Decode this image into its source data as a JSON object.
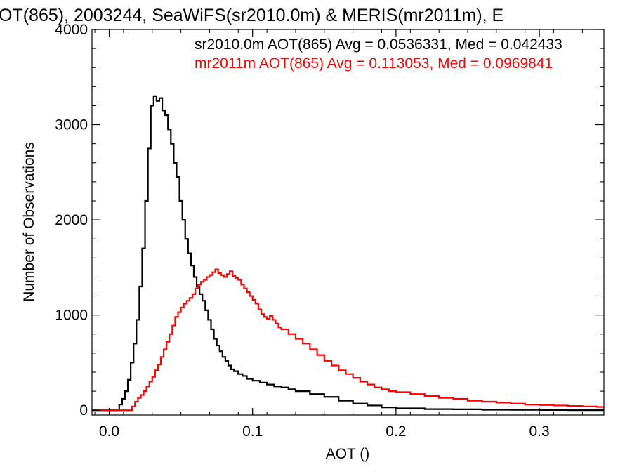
{
  "chart_data": {
    "type": "line",
    "step": true,
    "title": "OT(865), 2003244, SeaWiFS(sr2010.0m) & MERIS(mr2011m), E",
    "xlabel": "AOT ()",
    "ylabel": "Number of Observations",
    "xlim": [
      -0.012,
      0.345
    ],
    "ylim": [
      -50,
      4000
    ],
    "xticks": [
      0.0,
      0.1,
      0.2,
      0.3
    ],
    "xtick_labels": [
      "0.0",
      "0.1",
      "0.2",
      "0.3"
    ],
    "yticks": [
      0,
      1000,
      2000,
      3000,
      4000
    ],
    "ytick_labels": [
      "0",
      "1000",
      "2000",
      "3000",
      "4000"
    ],
    "grid": false,
    "legend_placement": "top-right",
    "series": [
      {
        "label": "sr2010.0m AOT(865) Avg = 0.0536331, Med = 0.042433",
        "color": "#000000",
        "points": [
          [
            -0.012,
            0
          ],
          [
            0.005,
            0
          ],
          [
            0.007,
            60
          ],
          [
            0.009,
            120
          ],
          [
            0.011,
            200
          ],
          [
            0.013,
            320
          ],
          [
            0.015,
            500
          ],
          [
            0.017,
            700
          ],
          [
            0.019,
            950
          ],
          [
            0.021,
            1300
          ],
          [
            0.023,
            1700
          ],
          [
            0.025,
            2200
          ],
          [
            0.027,
            2750
          ],
          [
            0.029,
            3200
          ],
          [
            0.031,
            3300
          ],
          [
            0.033,
            3250
          ],
          [
            0.035,
            3280
          ],
          [
            0.037,
            3150
          ],
          [
            0.039,
            3100
          ],
          [
            0.041,
            2950
          ],
          [
            0.043,
            2800
          ],
          [
            0.045,
            2600
          ],
          [
            0.047,
            2450
          ],
          [
            0.049,
            2200
          ],
          [
            0.051,
            2000
          ],
          [
            0.053,
            1800
          ],
          [
            0.055,
            1650
          ],
          [
            0.057,
            1520
          ],
          [
            0.059,
            1400
          ],
          [
            0.061,
            1300
          ],
          [
            0.063,
            1220
          ],
          [
            0.065,
            1150
          ],
          [
            0.067,
            1050
          ],
          [
            0.069,
            950
          ],
          [
            0.071,
            850
          ],
          [
            0.073,
            750
          ],
          [
            0.075,
            680
          ],
          [
            0.077,
            620
          ],
          [
            0.079,
            560
          ],
          [
            0.081,
            520
          ],
          [
            0.083,
            470
          ],
          [
            0.085,
            430
          ],
          [
            0.087,
            410
          ],
          [
            0.09,
            380
          ],
          [
            0.093,
            360
          ],
          [
            0.096,
            330
          ],
          [
            0.1,
            310
          ],
          [
            0.105,
            290
          ],
          [
            0.11,
            270
          ],
          [
            0.115,
            250
          ],
          [
            0.12,
            240
          ],
          [
            0.125,
            220
          ],
          [
            0.13,
            200
          ],
          [
            0.14,
            170
          ],
          [
            0.15,
            140
          ],
          [
            0.16,
            100
          ],
          [
            0.17,
            70
          ],
          [
            0.18,
            50
          ],
          [
            0.19,
            30
          ],
          [
            0.2,
            20
          ],
          [
            0.22,
            12
          ],
          [
            0.24,
            10
          ],
          [
            0.26,
            5
          ],
          [
            0.28,
            4
          ],
          [
            0.3,
            2
          ],
          [
            0.32,
            1
          ],
          [
            0.345,
            0
          ]
        ]
      },
      {
        "label": "mr2011m AOT(865) Avg = 0.113053, Med = 0.0969841",
        "color": "#ff0000",
        "points": [
          [
            -0.012,
            0
          ],
          [
            0.014,
            0
          ],
          [
            0.016,
            40
          ],
          [
            0.018,
            90
          ],
          [
            0.02,
            130
          ],
          [
            0.022,
            160
          ],
          [
            0.024,
            200
          ],
          [
            0.026,
            250
          ],
          [
            0.028,
            300
          ],
          [
            0.03,
            350
          ],
          [
            0.032,
            420
          ],
          [
            0.034,
            480
          ],
          [
            0.036,
            560
          ],
          [
            0.038,
            640
          ],
          [
            0.04,
            720
          ],
          [
            0.042,
            800
          ],
          [
            0.044,
            890
          ],
          [
            0.046,
            980
          ],
          [
            0.048,
            1030
          ],
          [
            0.05,
            1080
          ],
          [
            0.052,
            1120
          ],
          [
            0.054,
            1150
          ],
          [
            0.056,
            1180
          ],
          [
            0.058,
            1220
          ],
          [
            0.06,
            1280
          ],
          [
            0.062,
            1320
          ],
          [
            0.064,
            1350
          ],
          [
            0.066,
            1370
          ],
          [
            0.068,
            1400
          ],
          [
            0.07,
            1420
          ],
          [
            0.072,
            1450
          ],
          [
            0.074,
            1480
          ],
          [
            0.076,
            1440
          ],
          [
            0.078,
            1420
          ],
          [
            0.08,
            1400
          ],
          [
            0.082,
            1430
          ],
          [
            0.084,
            1460
          ],
          [
            0.086,
            1410
          ],
          [
            0.088,
            1390
          ],
          [
            0.09,
            1370
          ],
          [
            0.092,
            1320
          ],
          [
            0.094,
            1280
          ],
          [
            0.096,
            1240
          ],
          [
            0.098,
            1200
          ],
          [
            0.1,
            1160
          ],
          [
            0.102,
            1120
          ],
          [
            0.104,
            1060
          ],
          [
            0.106,
            1010
          ],
          [
            0.108,
            980
          ],
          [
            0.11,
            960
          ],
          [
            0.112,
            990
          ],
          [
            0.114,
            950
          ],
          [
            0.116,
            910
          ],
          [
            0.118,
            870
          ],
          [
            0.12,
            850
          ],
          [
            0.125,
            800
          ],
          [
            0.13,
            750
          ],
          [
            0.135,
            700
          ],
          [
            0.14,
            640
          ],
          [
            0.145,
            580
          ],
          [
            0.15,
            520
          ],
          [
            0.155,
            470
          ],
          [
            0.16,
            420
          ],
          [
            0.165,
            380
          ],
          [
            0.17,
            340
          ],
          [
            0.175,
            300
          ],
          [
            0.18,
            270
          ],
          [
            0.185,
            240
          ],
          [
            0.19,
            220
          ],
          [
            0.195,
            200
          ],
          [
            0.2,
            190
          ],
          [
            0.21,
            170
          ],
          [
            0.22,
            150
          ],
          [
            0.23,
            130
          ],
          [
            0.24,
            120
          ],
          [
            0.25,
            100
          ],
          [
            0.26,
            90
          ],
          [
            0.27,
            80
          ],
          [
            0.28,
            70
          ],
          [
            0.29,
            60
          ],
          [
            0.3,
            55
          ],
          [
            0.31,
            50
          ],
          [
            0.32,
            45
          ],
          [
            0.33,
            40
          ],
          [
            0.34,
            35
          ],
          [
            0.345,
            30
          ]
        ]
      }
    ]
  }
}
